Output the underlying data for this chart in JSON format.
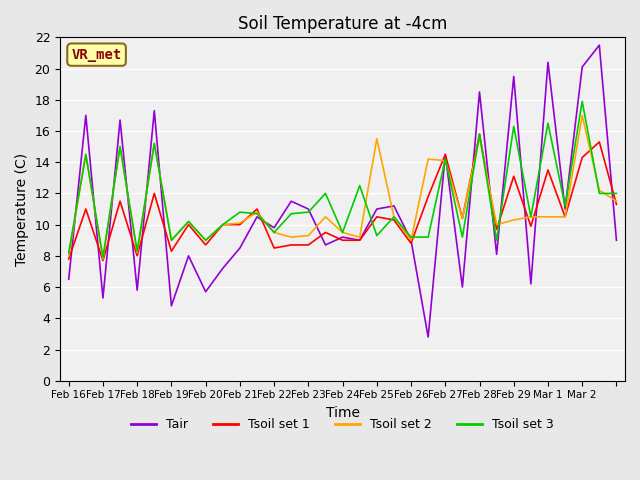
{
  "title": "Soil Temperature at -4cm",
  "xlabel": "Time",
  "ylabel": "Temperature (C)",
  "ylim": [
    0,
    22
  ],
  "yticks": [
    0,
    2,
    4,
    6,
    8,
    10,
    12,
    14,
    16,
    18,
    20,
    22
  ],
  "x_labels": [
    "Feb 16",
    "Feb 17",
    "Feb 18",
    "Feb 19",
    "Feb 20",
    "Feb 21",
    "Feb 22",
    "Feb 23",
    "Feb 24",
    "Feb 25",
    "Feb 26",
    "Feb 27",
    "Feb 28",
    "Feb 29",
    "Mar 1",
    "Mar 2"
  ],
  "annotation_text": "VR_met",
  "annotation_color": "#8B0000",
  "annotation_bg": "#FFFFAA",
  "bg_color": "#E8E8E8",
  "plot_bg": "#F0F0F0",
  "series": {
    "Tair": {
      "color": "#9400D3",
      "values": [
        6.5,
        17.0,
        5.3,
        16.7,
        5.8,
        17.3,
        4.8,
        8.0,
        5.7,
        7.2,
        8.5,
        10.5,
        9.8,
        11.5,
        11.0,
        8.7,
        9.2,
        9.0,
        11.0,
        11.2,
        9.0,
        2.8,
        14.5,
        6.0,
        18.5,
        8.1,
        19.5,
        6.2,
        20.4,
        11.0,
        20.1,
        21.5,
        9.0
      ]
    },
    "Tsoil set 1": {
      "color": "#FF0000",
      "values": [
        7.8,
        11.0,
        7.7,
        11.5,
        8.0,
        12.0,
        8.3,
        10.0,
        8.7,
        10.0,
        10.0,
        11.0,
        8.5,
        8.7,
        8.7,
        9.5,
        9.0,
        9.0,
        10.5,
        10.3,
        8.8,
        11.8,
        14.5,
        10.4,
        15.8,
        9.7,
        13.1,
        9.9,
        13.5,
        10.5,
        14.3,
        15.3,
        11.3
      ]
    },
    "Tsoil set 2": {
      "color": "#FFA500",
      "values": [
        8.0,
        14.5,
        7.8,
        15.0,
        8.2,
        15.2,
        9.0,
        10.2,
        9.0,
        10.0,
        10.1,
        10.8,
        9.5,
        9.2,
        9.3,
        10.5,
        9.5,
        9.2,
        15.5,
        10.5,
        9.0,
        14.2,
        14.1,
        10.4,
        15.6,
        10.0,
        10.3,
        10.5,
        10.5,
        10.5,
        17.0,
        12.2,
        11.5
      ]
    },
    "Tsoil set 3": {
      "color": "#00CC00",
      "values": [
        8.2,
        14.5,
        7.9,
        15.0,
        8.3,
        15.2,
        9.0,
        10.2,
        9.0,
        10.0,
        10.8,
        10.7,
        9.5,
        10.7,
        10.8,
        12.0,
        9.5,
        12.5,
        9.3,
        10.5,
        9.2,
        9.2,
        14.2,
        9.2,
        15.8,
        9.0,
        16.3,
        10.5,
        16.5,
        11.2,
        17.9,
        12.0,
        12.0
      ]
    }
  }
}
